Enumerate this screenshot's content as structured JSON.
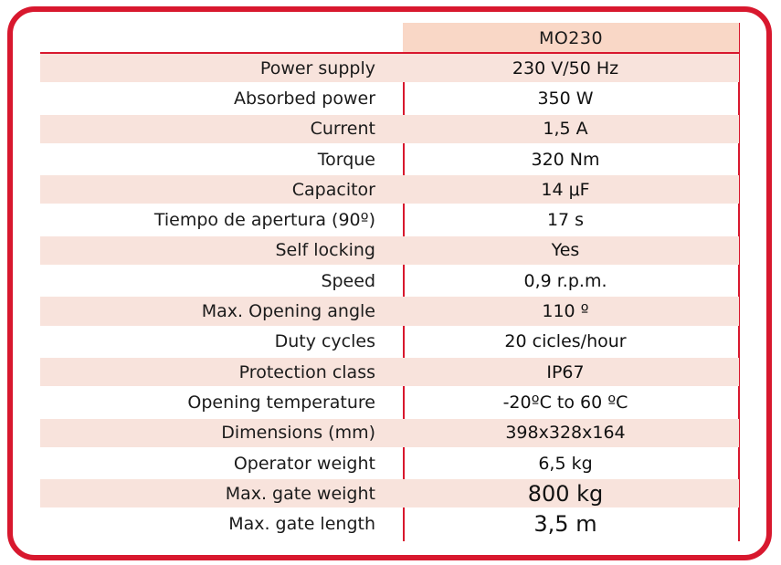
{
  "header": {
    "model": "MO230"
  },
  "specs": [
    {
      "label": "Power supply",
      "value": "230 V/50 Hz"
    },
    {
      "label": "Absorbed power",
      "value": "350 W"
    },
    {
      "label": "Current",
      "value": "1,5 A"
    },
    {
      "label": "Torque",
      "value": "320 Nm"
    },
    {
      "label": "Capacitor",
      "value": "14 μF"
    },
    {
      "label": "Tiempo de apertura (90º)",
      "value": "17 s"
    },
    {
      "label": "Self locking",
      "value": "Yes"
    },
    {
      "label": "Speed",
      "value": "0,9 r.p.m."
    },
    {
      "label": "Max. Opening angle",
      "value": "110 º"
    },
    {
      "label": "Duty cycles",
      "value": "20 cicles/hour"
    },
    {
      "label": "Protection class",
      "value": "IP67"
    },
    {
      "label": "Opening temperature",
      "value": "-20ºC  to 60 ºC"
    },
    {
      "label": "Dimensions (mm)",
      "value": "398x328x164"
    },
    {
      "label": "Operator weight",
      "value": "6,5 kg"
    },
    {
      "label": "Max. gate weight",
      "value": "800 kg"
    },
    {
      "label": "Max. gate length",
      "value": "3,5 m"
    }
  ],
  "colors": {
    "border": "#d8182e",
    "header_fill": "#f9d7c6",
    "row_shade": "#f8e3dc"
  }
}
